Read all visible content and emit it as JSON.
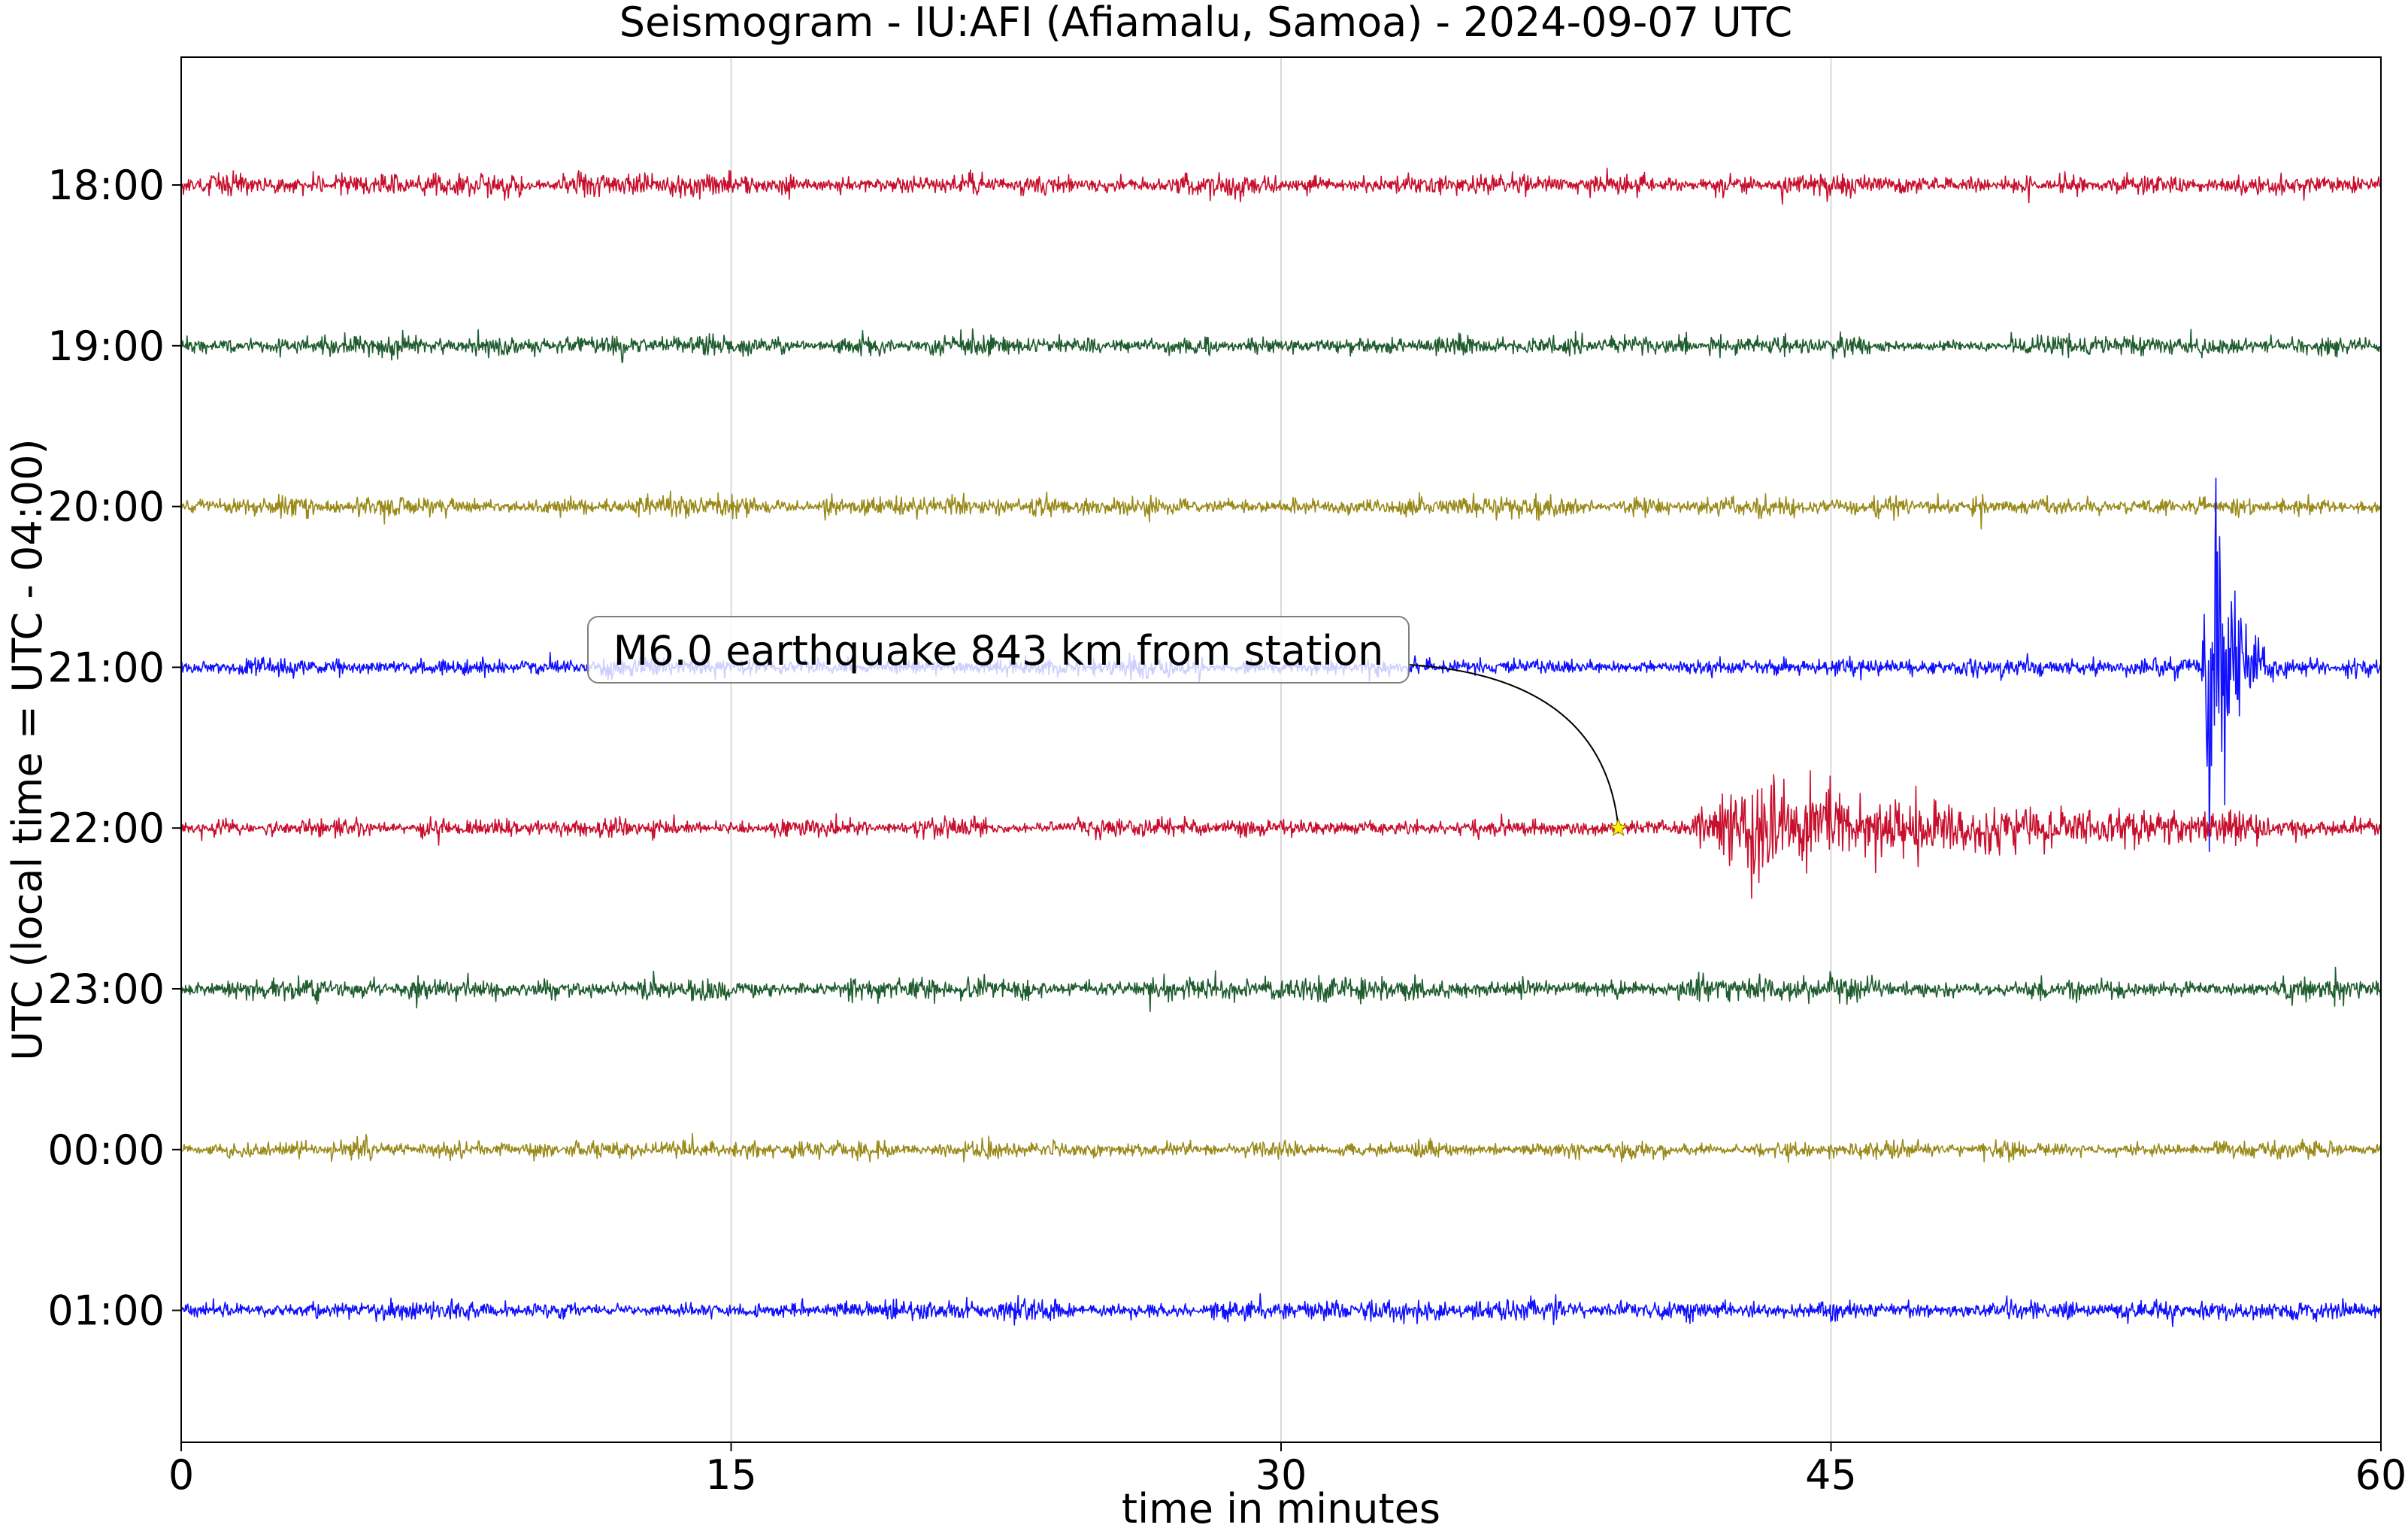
{
  "chart_data": {
    "type": "line",
    "title": "Seismogram - IU:AFI (Afiamalu, Samoa) - 2024-09-07 UTC",
    "xlabel": "time in minutes",
    "ylabel": "UTC (local time = UTC - 04:00)",
    "xlim": [
      0,
      60
    ],
    "xticks": [
      "0",
      "15",
      "30",
      "45",
      "60"
    ],
    "xtick_values": [
      0,
      15,
      30,
      45,
      60
    ],
    "grid": "vertical",
    "rows": [
      {
        "label": "18:00",
        "color": "#c8102e",
        "noise": 0.32,
        "seed": 11
      },
      {
        "label": "19:00",
        "color": "#1f5c2e",
        "noise": 0.3,
        "seed": 23
      },
      {
        "label": "20:00",
        "color": "#9a8a1a",
        "noise": 0.3,
        "seed": 37
      },
      {
        "label": "21:00",
        "color": "#1010ff",
        "noise": 0.26,
        "seed": 41
      },
      {
        "label": "22:00",
        "color": "#c8102e",
        "noise": 0.26,
        "seed": 53
      },
      {
        "label": "23:00",
        "color": "#1f5c2e",
        "noise": 0.32,
        "seed": 67
      },
      {
        "label": "00:00",
        "color": "#9a8a1a",
        "noise": 0.26,
        "seed": 71
      },
      {
        "label": "01:00",
        "color": "#1010ff",
        "noise": 0.28,
        "seed": 83
      }
    ],
    "events": [
      {
        "row": "22:00",
        "start_min": 41.0,
        "end_min": 57.0,
        "peak_min": 43.0,
        "peak_amplitude": 1.7
      },
      {
        "row": "21:00",
        "start_min": 55.1,
        "end_min": 57.0,
        "peak_min": 55.4,
        "peak_amplitude": 9.0
      }
    ],
    "annotation": {
      "text": "M6.0 earthquake 843 km from station",
      "row": "22:00",
      "minute": 39.2,
      "marker_color": "#ffee00"
    }
  }
}
